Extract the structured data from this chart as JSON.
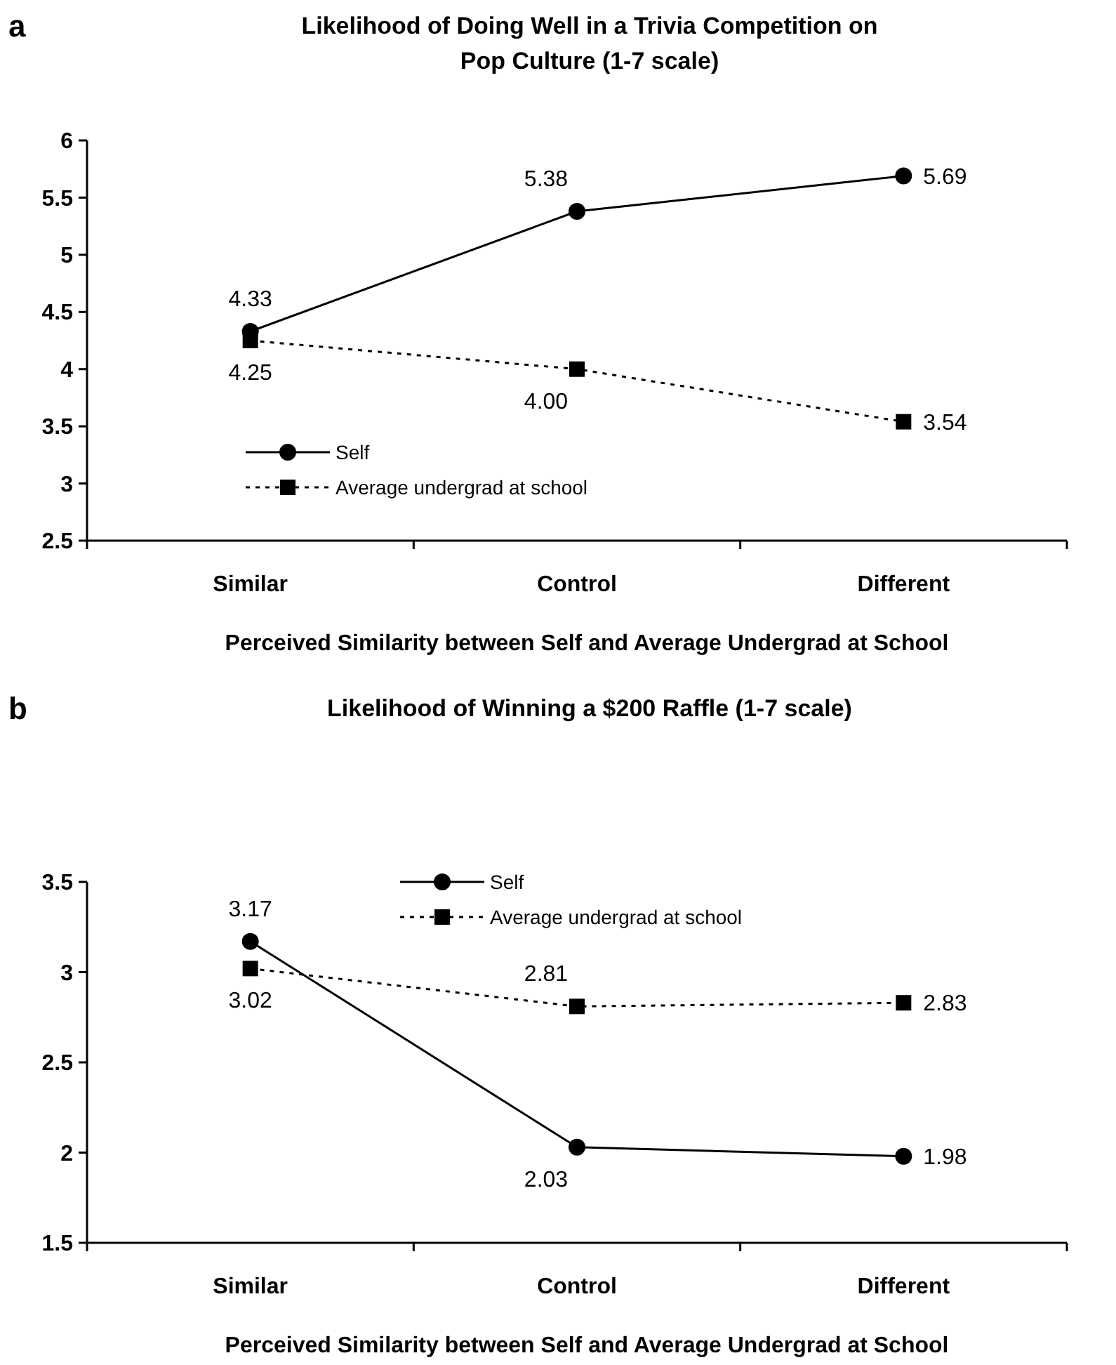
{
  "chart_data": [
    {
      "type": "line",
      "title": "Likelihood of Doing Well in a Trivia Competition on Pop Culture (1-7 scale)",
      "xlabel": "Perceived Similarity between Self and Average Undergrad at School",
      "annotations": [
        "a"
      ],
      "categories": [
        "Similar",
        "Control",
        "Different"
      ],
      "ylim": [
        2.5,
        6
      ],
      "yticks": [
        2.5,
        3,
        3.5,
        4,
        4.5,
        5,
        5.5,
        6
      ],
      "grid": false,
      "legend": "bottom left",
      "series": [
        {
          "name": "Self",
          "color": "#000000",
          "marker": "circle",
          "line_style": "solid",
          "values": [
            4.33,
            5.38,
            5.69
          ],
          "value_labels": [
            "4.33",
            "5.38",
            "5.69"
          ]
        },
        {
          "name": "Average undergrad at school",
          "color": "#000000",
          "marker": "square",
          "line_style": "dotted",
          "values": [
            4.25,
            4.0,
            3.54
          ],
          "value_labels": [
            "4.25",
            "4.00",
            "3.54"
          ]
        }
      ]
    },
    {
      "type": "line",
      "title": "Likelihood of Winning a $200 Raffle (1-7 scale)",
      "xlabel": "Perceived Similarity between Self and Average Undergrad at School",
      "annotations": [
        "b"
      ],
      "categories": [
        "Similar",
        "Control",
        "Different"
      ],
      "ylim": [
        1.5,
        3.5
      ],
      "yticks": [
        1.5,
        2,
        2.5,
        3,
        3.5
      ],
      "grid": false,
      "legend": "top",
      "series": [
        {
          "name": "Self",
          "color": "#000000",
          "marker": "circle",
          "line_style": "solid",
          "values": [
            3.17,
            2.03,
            1.98
          ],
          "value_labels": [
            "3.17",
            "2.03",
            "1.98"
          ]
        },
        {
          "name": "Average undergrad at school",
          "color": "#000000",
          "marker": "square",
          "line_style": "dotted",
          "values": [
            3.02,
            2.81,
            2.83
          ],
          "value_labels": [
            "3.02",
            "2.81",
            "2.83"
          ]
        }
      ]
    }
  ]
}
